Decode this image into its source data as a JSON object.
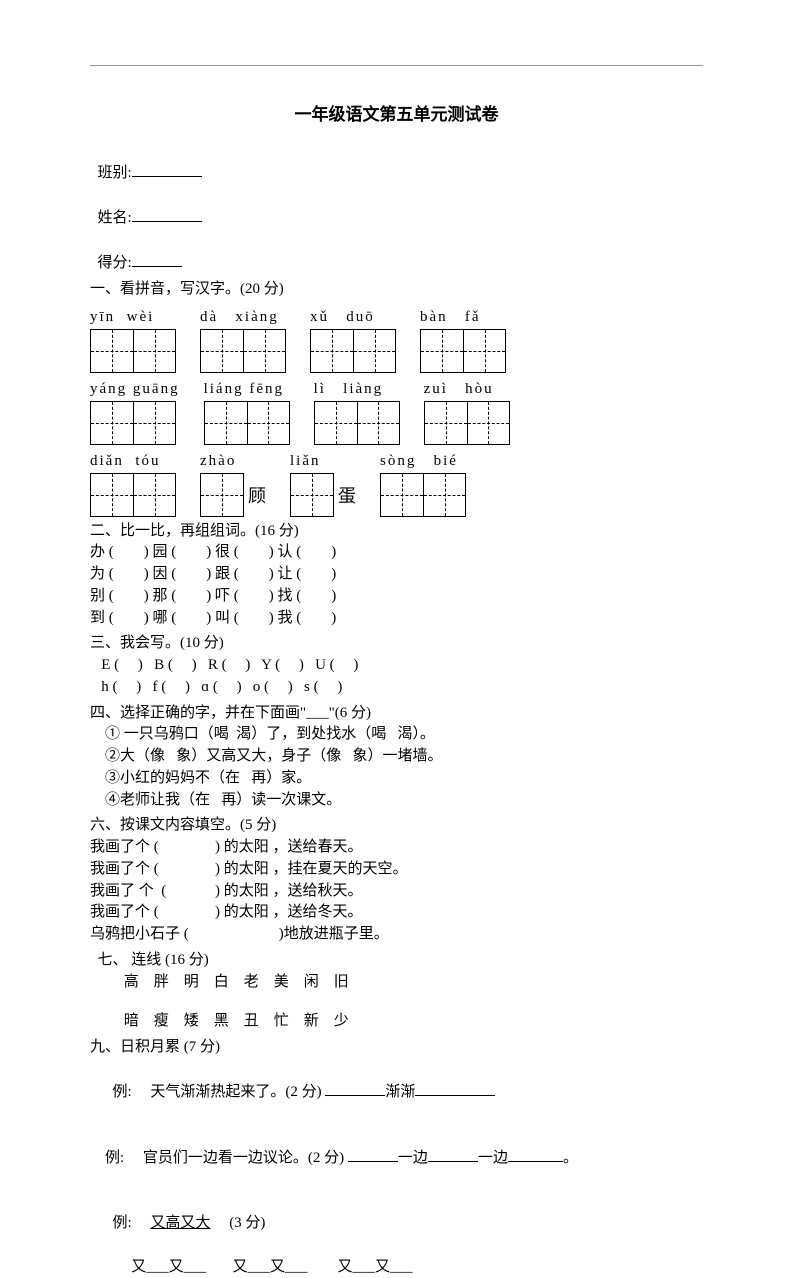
{
  "title": "一年级语文第五单元测试卷",
  "header": {
    "class_label": "班别:",
    "name_label": "姓名:",
    "score_label": "得分:"
  },
  "sections": {
    "q1": "一、看拼音，写汉字。(20 分)",
    "q2": "二、比一比，再组组词。(16 分)",
    "q3": "三、我会写。(10 分)",
    "q4": "四、选择正确的字，并在下面画\"___\"(6 分)",
    "q6": "六、按课文内容填空。(5 分)",
    "q7": "  七、 连线 (16 分)",
    "q9": "九、日积月累 (7 分)"
  },
  "pinyin_rows": [
    [
      {
        "py": "yīn  wèi",
        "boxes": 2
      },
      {
        "py": "dà   xiàng",
        "boxes": 2
      },
      {
        "py": "xǔ   duō",
        "boxes": 2
      },
      {
        "py": "bàn   fǎ",
        "boxes": 2
      }
    ],
    [
      {
        "py": "yáng guāng",
        "boxes": 2
      },
      {
        "py": "liáng fēng",
        "boxes": 2
      },
      {
        "py": "lì   liàng",
        "boxes": 2
      },
      {
        "py": "zuì   hòu",
        "boxes": 2
      }
    ],
    [
      {
        "py": "diǎn  tóu",
        "boxes": 2
      },
      {
        "py": "zhào",
        "boxes": 1,
        "suffix": "顾"
      },
      {
        "py": "liǎn",
        "boxes": 1,
        "suffix": "蛋"
      },
      {
        "py": "sòng   bié",
        "boxes": 2
      }
    ]
  ],
  "q2_lines": [
    "办 (        ) 园 (        ) 很 (        ) 认 (        )",
    "为 (        ) 因 (        ) 跟 (        ) 让 (        )",
    "别 (        ) 那 (        ) 吓 (        ) 找 (        )",
    "到 (        ) 哪 (        ) 叫 (        ) 我 (        )"
  ],
  "q3_lines": [
    "   E (     )   B (     )   R (     )   Y (     )   U (     )",
    "   h (     )   f (     )   ɑ (     )   o (     )   s (     )"
  ],
  "q4_lines": [
    "    ① 一只乌鸦口（喝  渴）了，到处找水（喝   渴）。",
    "    ②大（像   象）又高又大，身子（像   象）一堵墙。",
    "    ③小红的妈妈不（在   再）家。",
    "    ④老师让我（在   再）读一次课文。"
  ],
  "q6_lines": [
    "我画了个 (               ) 的太阳 ，送给春天。",
    "我画了个 (               ) 的太阳 ，挂在夏天的天空。",
    "我画了 个  (             ) 的太阳 ，送给秋天。",
    "我画了个 (               ) 的太阳 ，送给冬天。",
    "乌鸦把小石子 (                        )地放进瓶子里。"
  ],
  "q7_row1": "         高    胖    明    白    老    美    闲    旧",
  "q7_row2": "         暗    瘦    矮    黑    丑    忙    新    少",
  "q9": {
    "ex1_pre": "  例:     天气渐渐热起来了。(2 分) ",
    "ex1_mid": "渐渐",
    "ex2_pre": "例:     官员们一边看一边议论。(2 分) ",
    "ex2_mid1": "一边",
    "ex2_mid2": "一边",
    "ex2_end": "。",
    "ex3_pre": "  例:     ",
    "ex3_word": "又高又大",
    "ex3_suffix": "     (3 分)",
    "ex3_line": "           又___又___       又___又___        又___又___"
  }
}
